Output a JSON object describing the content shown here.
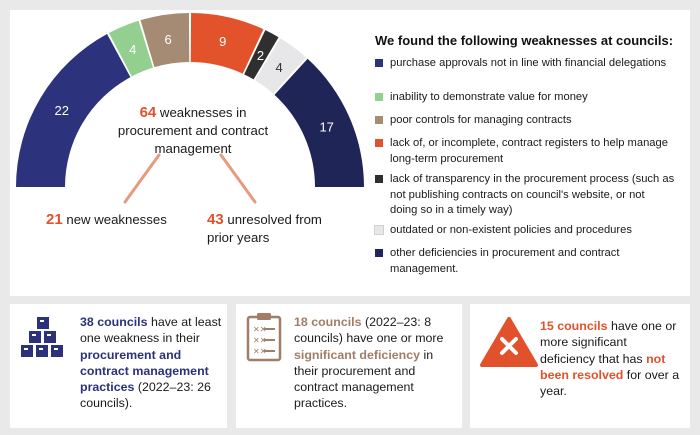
{
  "chart_data": {
    "type": "donut-gauge",
    "series": [
      {
        "value": 22,
        "color": "#2c327b"
      },
      {
        "value": 4,
        "color": "#93cf8f"
      },
      {
        "value": 6,
        "color": "#a58a74"
      },
      {
        "value": 9,
        "color": "#e2532b"
      },
      {
        "value": 2,
        "color": "#2f2f2f"
      },
      {
        "value": 4,
        "color": "#e7e7e9"
      },
      {
        "value": 17,
        "color": "#1f2556"
      }
    ],
    "center_value": "64",
    "center_text": "weaknesses in procurement and contract management",
    "split": [
      {
        "value": "21",
        "label": "new weaknesses"
      },
      {
        "value": "43",
        "label": "unresolved from prior years"
      }
    ]
  },
  "legend": {
    "title": "We found the following weaknesses at councils:",
    "items": [
      {
        "text": "purchase approvals not in line with financial delegations",
        "color": "#2c327b"
      },
      {
        "text": "inability to demonstrate value for money",
        "color": "#93cf8f"
      },
      {
        "text": "poor controls for managing contracts",
        "color": "#a58a74"
      },
      {
        "text": "lack of, or incomplete, contract registers to help manage long-term procurement",
        "color": "#e2532b"
      },
      {
        "text": "lack of transparency in the procurement process (such as not publishing contracts on council's website, or not doing so in a timely way)",
        "color": "#2f2f2f"
      },
      {
        "text": "outdated or non-existent policies and procedures",
        "color": "#e7e7e9"
      },
      {
        "text": "other deficiencies in procurement and contract management.",
        "color": "#1f2556"
      }
    ]
  },
  "cards": [
    {
      "icon": "boxes-pyramid-icon",
      "bold_1": "38 councils",
      "text_1": " have at least one weakness in their ",
      "bold_2": "procurement and contract management practices",
      "text_2": " (2022–23: 26 councils)."
    },
    {
      "icon": "checklist-clipboard-icon",
      "bold_1": "18 councils",
      "text_1": " (2022–23: 8 councils) have one or more ",
      "bold_2": "significant deficiency",
      "text_2": " in their procurement and contract management practices."
    },
    {
      "icon": "warning-cross-icon",
      "bold_1": "15 councils",
      "text_1": " have one or more significant deficiency that has ",
      "bold_2": "not been resolved",
      "text_2": " for over a year."
    }
  ],
  "colors": {
    "navy": "#2b317b",
    "orange": "#e1512c",
    "brown": "#a07d67",
    "background": "#e9e9ea"
  }
}
